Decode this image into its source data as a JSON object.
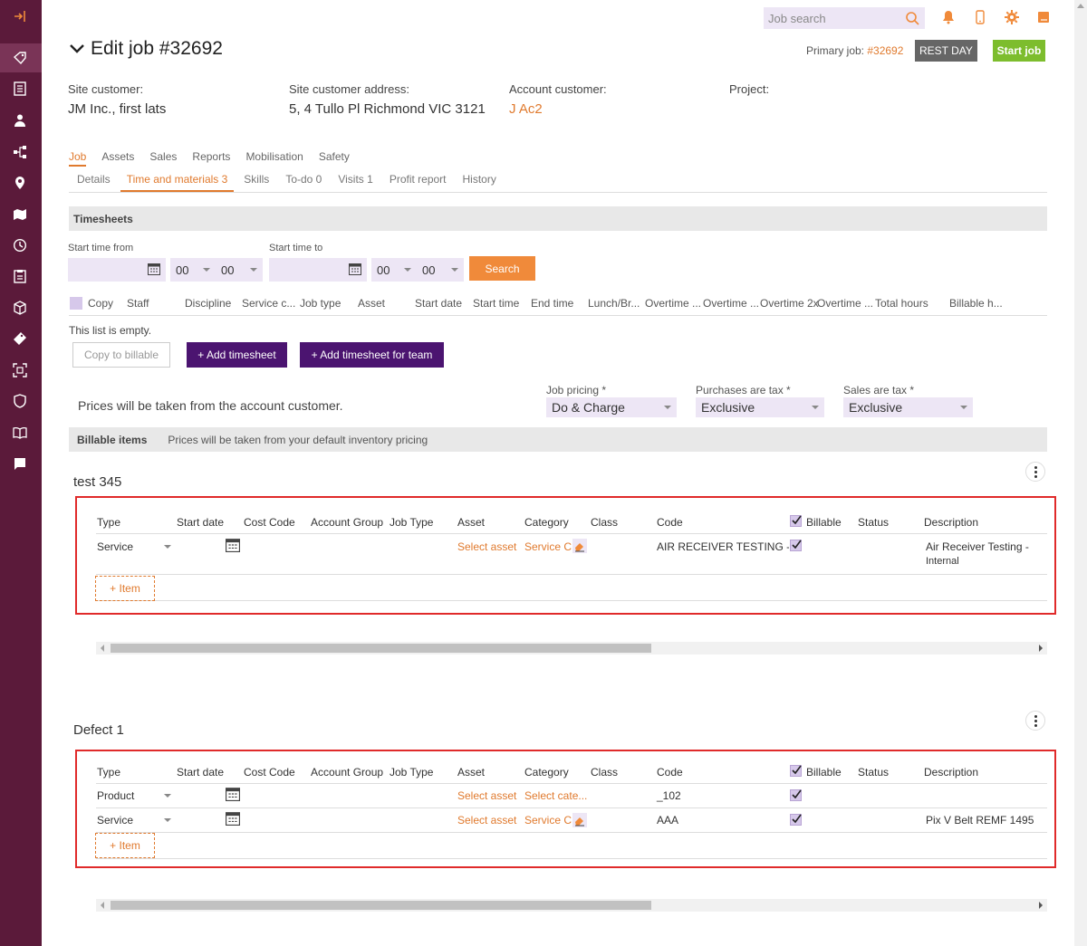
{
  "sidebar": {
    "icons": [
      "sign-in-icon",
      "tags-icon",
      "checklist-icon",
      "user-icon",
      "hierarchy-icon",
      "map-pin-icon",
      "map-icon",
      "clock-icon",
      "clipboard-icon",
      "box-icon",
      "ticket-icon",
      "scan-icon",
      "shield-icon",
      "book-icon",
      "notebook-icon"
    ]
  },
  "topbar": {
    "search_placeholder": "Job search"
  },
  "header": {
    "title": "Edit job #32692",
    "primary_job_label": "Primary job:",
    "primary_job_link": "#32692",
    "rest_day": "REST DAY",
    "start_job": "Start job"
  },
  "info": {
    "site_customer_label": "Site customer:",
    "site_customer_value": "JM Inc., first lats",
    "site_address_label": "Site customer address:",
    "site_address_value": "5, 4 Tullo Pl Richmond VIC 3121",
    "account_customer_label": "Account customer:",
    "account_customer_value": "J Ac2",
    "project_label": "Project:"
  },
  "tabs_main": [
    "Job",
    "Assets",
    "Sales",
    "Reports",
    "Mobilisation",
    "Safety"
  ],
  "tabs_sub": [
    "Details",
    "Time and materials 3",
    "Skills",
    "To-do 0",
    "Visits 1",
    "Profit report",
    "History"
  ],
  "timesheets": {
    "title": "Timesheets",
    "start_from_label": "Start time from",
    "start_to_label": "Start time to",
    "hour1": "00",
    "min1": "00",
    "hour2": "00",
    "min2": "00",
    "search_button": "Search",
    "columns": [
      "Copy",
      "Staff",
      "Discipline",
      "Service c...",
      "Job type",
      "Asset",
      "Start date",
      "Start time",
      "End time",
      "Lunch/Br...",
      "Overtime ...",
      "Overtime ...",
      "Overtime 2x",
      "Overtime ...",
      "Total hours",
      "Billable h..."
    ],
    "empty": "This list is empty.",
    "copy_to_billable": "Copy to billable",
    "add_timesheet": "+ Add timesheet",
    "add_timesheet_team": "+ Add timesheet for team"
  },
  "pricing": {
    "message": "Prices will be taken from the account customer.",
    "job_pricing_label": "Job pricing *",
    "job_pricing_value": "Do & Charge",
    "purchases_tax_label": "Purchases are tax *",
    "purchases_tax_value": "Exclusive",
    "sales_tax_label": "Sales are tax *",
    "sales_tax_value": "Exclusive"
  },
  "billable": {
    "title": "Billable items",
    "note": "Prices will be taken from your default inventory pricing"
  },
  "item_columns": [
    "Type",
    "Start date",
    "Cost Code",
    "Account Group",
    "Job Type",
    "Asset",
    "Category",
    "Class",
    "Code",
    "Billable",
    "Status",
    "Description"
  ],
  "groups": [
    {
      "title": "test 345",
      "rows": [
        {
          "type": "Service",
          "asset": "Select asset",
          "category": "Service C",
          "code": "AIR RECEIVER TESTING - I",
          "description": "Air Receiver Testing -",
          "description2": "Internal"
        }
      ],
      "add_item": "+ Item"
    },
    {
      "title": "Defect 1",
      "rows": [
        {
          "type": "Product",
          "asset": "Select asset",
          "category": "Select cate...",
          "code": "_102",
          "description": ""
        },
        {
          "type": "Service",
          "asset": "Select asset",
          "category": "Service C",
          "code": "AAA",
          "description": "Pix V Belt REMF 1495"
        }
      ],
      "add_item": "+ Item"
    }
  ],
  "colors": {
    "sidebar": "#5b1a3a",
    "accent": "#e07a2e",
    "purple_button": "#4b1470",
    "green": "#7dbd2d"
  }
}
